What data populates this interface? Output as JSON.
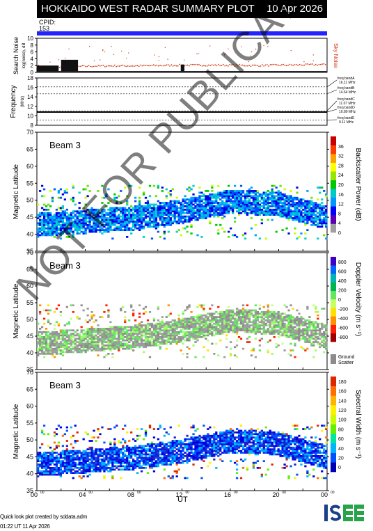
{
  "header": {
    "title": "HOKKAIDO WEST RADAR SUMMARY PLOT",
    "date": "10 Apr 2026",
    "cpid_label": "CPID:",
    "cpid_value": "153"
  },
  "noise_panel": {
    "ylabel": "Search Noise",
    "ylabel_sub": "log(noise), dB",
    "side_label": "Sky Noise",
    "yticks": [
      "0",
      "2",
      "4",
      "6",
      "8",
      "10"
    ]
  },
  "freq_panel": {
    "ylabel": "Frequency",
    "ylabel_sub": "(MHz)",
    "yticks": [
      "8",
      "10",
      "12",
      "14",
      "16",
      "18"
    ],
    "bands": [
      {
        "name": "freq bandA",
        "value": "16.11 MHz"
      },
      {
        "name": "freq bandB",
        "value": "14.64 MHz"
      },
      {
        "name": "freq bandC",
        "value": "11.07 MHz"
      },
      {
        "name": "freq bandD",
        "value": "10.80 MHz"
      },
      {
        "name": "freq bandE",
        "value": "9.11 MHz"
      }
    ]
  },
  "panels": [
    {
      "beam": "Beam  3",
      "ylabel": "Magnetic Latitude",
      "cbar_label": "Backscatter Power (dB)",
      "cbar_ticks": [
        "0",
        "4",
        "8",
        "12",
        "16",
        "20",
        "24",
        "28",
        "32",
        "36"
      ]
    },
    {
      "beam": "Beam  3",
      "ylabel": "Magnetic Latitude",
      "cbar_label": "Doppler Velocity (m s⁻¹)",
      "cbar_ticks": [
        "-800",
        "-600",
        "-400",
        "-200",
        "0",
        "200",
        "400",
        "600",
        "800"
      ],
      "ground_label": "Ground Scatter"
    },
    {
      "beam": "Beam  3",
      "ylabel": "Magnetic Latitude",
      "cbar_label": "Spectral Width (m s⁻¹)",
      "cbar_ticks": [
        "0",
        "20",
        "40",
        "60",
        "80",
        "100",
        "120",
        "140",
        "160",
        "180"
      ]
    }
  ],
  "lat_ticks": [
    "35",
    "40",
    "45",
    "50",
    "55",
    "60",
    "65",
    "70"
  ],
  "xaxis": {
    "label": "UT",
    "ticks": [
      "00",
      "04",
      "08",
      "12",
      "16",
      "20",
      "00"
    ],
    "tick_sup": "00"
  },
  "footer": {
    "credit": "Quick look plot created by sddata.adm",
    "timestamp": "01:22 UT 11 Apr 2026"
  },
  "logo_text": "ISEE",
  "watermark": "NOT FOR PUBLICATION",
  "colors": {
    "blue_bar": "#2323ff",
    "noise": "#d2401a",
    "ground": "#8c8c8c"
  },
  "chart_data": [
    {
      "type": "area",
      "title": "Search Noise",
      "xlabel": "UT",
      "ylabel": "Search Noise",
      "ylim": [
        0,
        10
      ],
      "x": [
        0,
        1,
        2,
        3,
        4,
        6,
        8,
        10,
        12,
        14,
        16,
        18,
        20,
        22,
        24
      ],
      "series": [
        {
          "name": "Sky Noise",
          "values": [
            1.9,
            1.6,
            1.5,
            1.6,
            1.8,
            1.9,
            1.9,
            2.0,
            2.1,
            2.1,
            2.1,
            2.0,
            2.1,
            2.2,
            2.3
          ]
        },
        {
          "values": [
            2,
            1.7,
            3.6,
            0.4,
            0.3,
            0.3,
            0.3,
            0.3,
            0.4,
            0.3,
            0.3,
            0.3,
            0.3,
            0.3,
            0.3
          ]
        }
      ]
    },
    {
      "type": "line",
      "title": "Frequency",
      "xlabel": "UT",
      "ylabel": "Frequency (MHz)",
      "ylim": [
        8,
        18
      ],
      "x": [
        0,
        24
      ],
      "series": [
        {
          "name": "operating frequency",
          "values": [
            10.8,
            10.8
          ]
        }
      ]
    },
    {
      "type": "heatmap",
      "title": "Backscatter Power (dB)",
      "xlabel": "UT",
      "ylabel": "Magnetic Latitude",
      "ylim": [
        35,
        70
      ],
      "x": [
        0,
        4,
        8,
        12,
        16,
        20,
        24
      ],
      "series": [
        {
          "name": "scatter lower edge",
          "values": [
            40,
            41,
            42,
            44,
            47,
            46,
            42
          ]
        }
      ]
    },
    {
      "type": "heatmap",
      "title": "Doppler Velocity (m s⁻¹)",
      "xlabel": "UT",
      "ylabel": "Magnetic Latitude",
      "ylim": [
        35,
        70
      ],
      "x": [
        0,
        4,
        8,
        12,
        16,
        20,
        24
      ],
      "series": [
        {
          "name": "scatter lower edge",
          "values": [
            40,
            41,
            42,
            44,
            47,
            46,
            42
          ]
        }
      ]
    },
    {
      "type": "heatmap",
      "title": "Spectral Width (m s⁻¹)",
      "xlabel": "UT",
      "ylabel": "Magnetic Latitude",
      "ylim": [
        35,
        70
      ],
      "x": [
        0,
        4,
        8,
        12,
        16,
        20,
        24
      ],
      "series": [
        {
          "name": "scatter lower edge",
          "values": [
            40,
            41,
            42,
            44,
            47,
            46,
            42
          ]
        }
      ]
    }
  ]
}
